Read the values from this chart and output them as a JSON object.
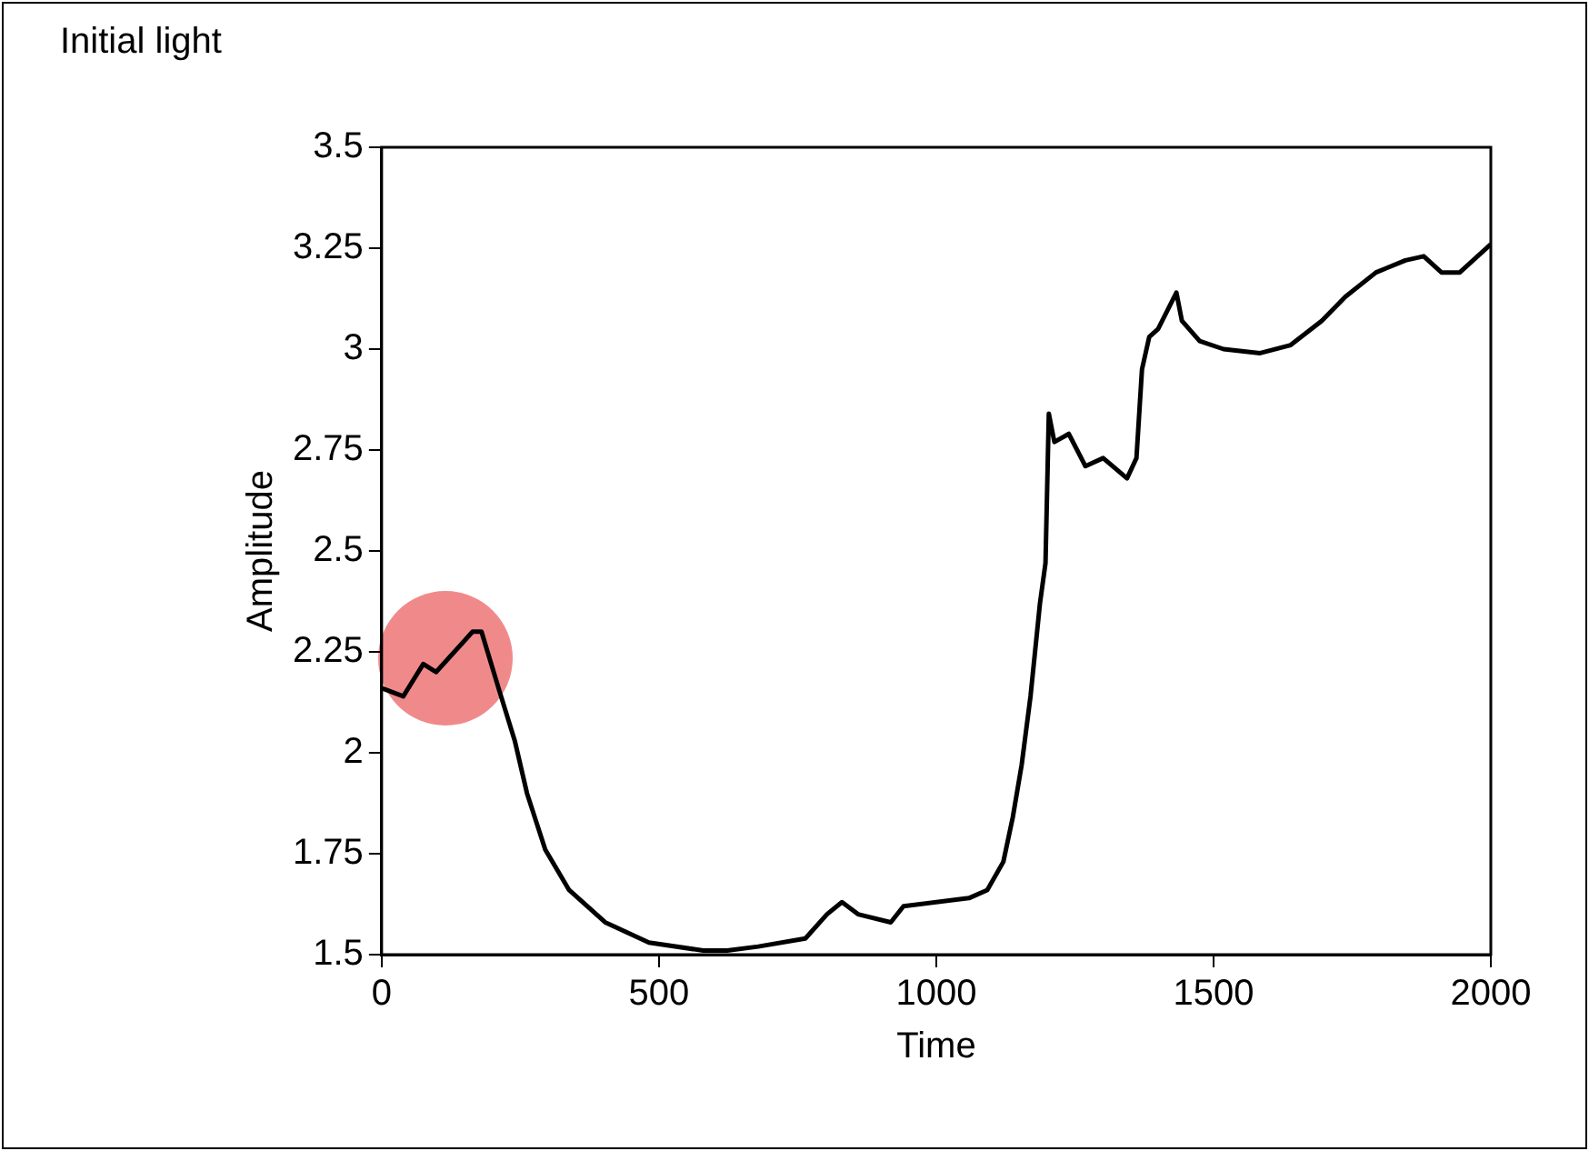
{
  "chart_data": {
    "type": "line",
    "title": "Initial light",
    "xlabel": "Time",
    "ylabel": "Amplitude",
    "x": [
      0,
      39,
      75,
      98,
      164,
      180,
      213,
      240,
      262,
      295,
      338,
      403,
      482,
      580,
      623,
      679,
      764,
      803,
      830,
      859,
      918,
      941,
      1059,
      1092,
      1121,
      1138,
      1154,
      1170,
      1187,
      1197,
      1203,
      1213,
      1239,
      1269,
      1301,
      1344,
      1361,
      1371,
      1384,
      1400,
      1433,
      1443,
      1475,
      1518,
      1584,
      1639,
      1695,
      1738,
      1793,
      1846,
      1879,
      1911,
      1944,
      2000
    ],
    "series": [
      {
        "color": "#000000",
        "values": [
          2.16,
          2.14,
          2.22,
          2.2,
          2.3,
          2.3,
          2.15,
          2.03,
          1.9,
          1.76,
          1.66,
          1.58,
          1.53,
          1.51,
          1.51,
          1.52,
          1.54,
          1.6,
          1.63,
          1.6,
          1.58,
          1.62,
          1.64,
          1.66,
          1.73,
          1.84,
          1.97,
          2.14,
          2.37,
          2.47,
          2.84,
          2.77,
          2.79,
          2.71,
          2.73,
          2.68,
          2.73,
          2.95,
          3.03,
          3.05,
          3.14,
          3.07,
          3.02,
          3,
          2.99,
          3.01,
          3.07,
          3.13,
          3.19,
          3.22,
          3.23,
          3.19,
          3.19,
          3.26
        ]
      }
    ],
    "xlim": [
      0,
      2000
    ],
    "xticks": [
      0,
      500,
      1000,
      1500,
      2000
    ],
    "ylim": [
      1.5,
      3.5
    ],
    "yticks": [
      1.5,
      1.75,
      2,
      2.25,
      2.5,
      2.75,
      3,
      3.25,
      3.5
    ],
    "grid": false,
    "legend": false,
    "marker": "none",
    "line_style": "solid"
  }
}
